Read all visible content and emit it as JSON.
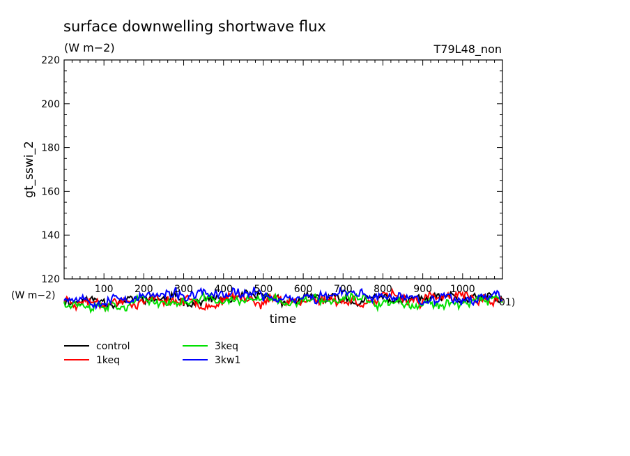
{
  "title": "surface downwelling shortwave flux",
  "units": "(W m−2)",
  "run_label": "T79L48_non",
  "ylabel": "gt_sswi_2",
  "xlabel": "time",
  "below_axis_units": "(W m−2)",
  "below_axis_suffix": "01)",
  "chart_data": {
    "type": "line",
    "title": "surface downwelling shortwave flux",
    "xlabel": "time",
    "ylabel": "gt_sswi_2",
    "xlim": [
      0,
      1100
    ],
    "ylim": [
      120,
      220
    ],
    "yticks": [
      120,
      140,
      160,
      180,
      200,
      220
    ],
    "xticks": [
      100,
      200,
      300,
      400,
      500,
      600,
      700,
      800,
      900,
      1000
    ],
    "grid": false,
    "legend_position": "bottom-left",
    "note": "",
    "series": [
      {
        "name": "control",
        "color": "#000000",
        "base": 110.3,
        "amp": 2.6,
        "seed": 11
      },
      {
        "name": "1keq",
        "color": "#ff0000",
        "base": 110.6,
        "amp": 2.9,
        "seed": 23
      },
      {
        "name": "3keq",
        "color": "#00e000",
        "base": 109.8,
        "amp": 2.7,
        "seed": 37
      },
      {
        "name": "3kw1",
        "color": "#0000ff",
        "base": 112.0,
        "amp": 2.9,
        "seed": 53
      }
    ]
  },
  "colors": {
    "frame": "#000000",
    "background": "#ffffff"
  }
}
